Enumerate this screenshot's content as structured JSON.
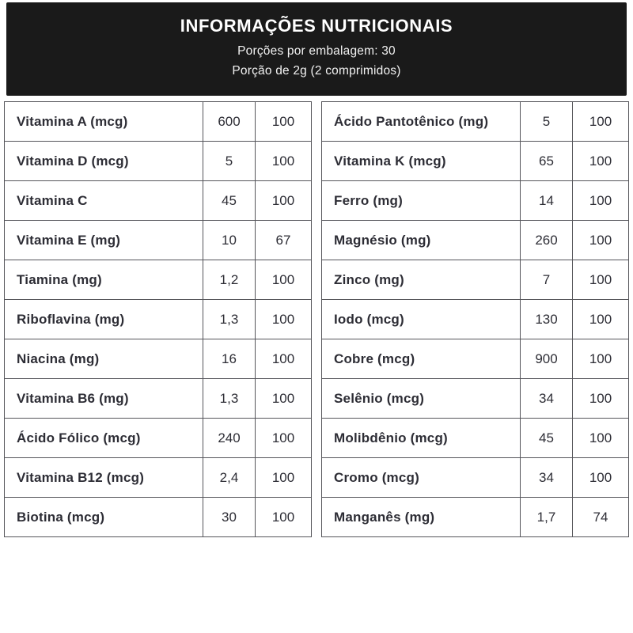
{
  "header": {
    "title": "INFORMAÇÕES NUTRICIONAIS",
    "servings_per_package": "Porções por embalagem: 30",
    "serving_size": "Porção de 2g (2 comprimidos)"
  },
  "colors": {
    "header_bg": "#1a1a1a",
    "header_text": "#ffffff",
    "table_border": "#55555a",
    "table_text": "#2d2d35",
    "page_bg": "#ffffff"
  },
  "tables": {
    "left": {
      "rows": [
        {
          "name": "Vitamina A (mcg)",
          "value": "600",
          "percent": "100"
        },
        {
          "name": "Vitamina D (mcg)",
          "value": "5",
          "percent": "100"
        },
        {
          "name": "Vitamina C",
          "value": "45",
          "percent": "100"
        },
        {
          "name": "Vitamina E (mg)",
          "value": "10",
          "percent": "67"
        },
        {
          "name": "Tiamina (mg)",
          "value": "1,2",
          "percent": "100"
        },
        {
          "name": "Riboflavina (mg)",
          "value": "1,3",
          "percent": "100"
        },
        {
          "name": "Niacina (mg)",
          "value": "16",
          "percent": "100"
        },
        {
          "name": "Vitamina B6 (mg)",
          "value": "1,3",
          "percent": "100"
        },
        {
          "name": "Ácido Fólico (mcg)",
          "value": "240",
          "percent": "100"
        },
        {
          "name": "Vitamina B12 (mcg)",
          "value": "2,4",
          "percent": "100"
        },
        {
          "name": "Biotina (mcg)",
          "value": "30",
          "percent": "100"
        }
      ]
    },
    "right": {
      "rows": [
        {
          "name": "Ácido Pantotênico (mg)",
          "value": "5",
          "percent": "100"
        },
        {
          "name": "Vitamina K (mcg)",
          "value": "65",
          "percent": "100"
        },
        {
          "name": "Ferro (mg)",
          "value": "14",
          "percent": "100"
        },
        {
          "name": "Magnésio (mg)",
          "value": "260",
          "percent": "100"
        },
        {
          "name": "Zinco (mg)",
          "value": "7",
          "percent": "100"
        },
        {
          "name": "Iodo (mcg)",
          "value": "130",
          "percent": "100"
        },
        {
          "name": "Cobre (mcg)",
          "value": "900",
          "percent": "100"
        },
        {
          "name": "Selênio (mcg)",
          "value": "34",
          "percent": "100"
        },
        {
          "name": "Molibdênio (mcg)",
          "value": "45",
          "percent": "100"
        },
        {
          "name": "Cromo (mcg)",
          "value": "34",
          "percent": "100"
        },
        {
          "name": "Manganês (mg)",
          "value": "1,7",
          "percent": "74"
        }
      ]
    }
  }
}
